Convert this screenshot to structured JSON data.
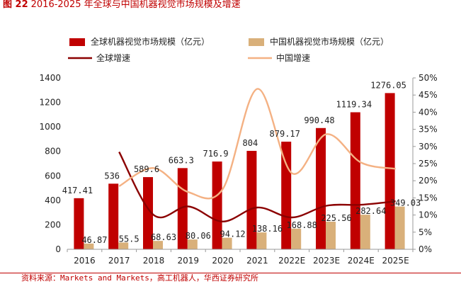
{
  "figure_title": {
    "label": "图 22",
    "text": "2016-2025 年全球与中国机器视觉市场规模及增速"
  },
  "source": "资料来源：Markets and Markets，高工机器人，华西证券研究所",
  "colors": {
    "global_bar": "#c00000",
    "china_bar": "#d9b07a",
    "global_line": "#8b0000",
    "china_line": "#f4b183",
    "accent": "#c00000"
  },
  "chart_data": {
    "type": "bar",
    "categories": [
      "2016",
      "2017",
      "2018",
      "2019",
      "2020",
      "2021",
      "2022E",
      "2023E",
      "2024E",
      "2025E"
    ],
    "series": [
      {
        "name": "全球机器视觉市场规模（亿元）",
        "kind": "bar",
        "axis": "left",
        "values": [
          417.41,
          536,
          589.6,
          663.3,
          716.9,
          804,
          879.17,
          990.48,
          1119.34,
          1276.05
        ],
        "labels": [
          "417.41",
          "536",
          "589.6",
          "663.3",
          "716.9",
          "804",
          "879.17",
          "990.48",
          "1119.34",
          "1276.05"
        ]
      },
      {
        "name": "中国机器视觉市场规模（亿元）",
        "kind": "bar",
        "axis": "left",
        "values": [
          46.87,
          55.5,
          68.63,
          80.06,
          94.12,
          138.16,
          168.88,
          225.56,
          282.64,
          349.03
        ],
        "labels": [
          "46.87",
          "55.5",
          "68.63",
          "80.06",
          "94.12",
          "138.16",
          "168.88",
          "225.56",
          "282.64",
          "349.03"
        ]
      },
      {
        "name": "全球增速",
        "kind": "line",
        "axis": "right",
        "values": [
          null,
          28.4,
          10.0,
          12.5,
          8.1,
          12.2,
          9.3,
          12.7,
          13.0,
          14.0
        ]
      },
      {
        "name": "中国增速",
        "kind": "line",
        "axis": "right",
        "values": [
          null,
          18.4,
          23.7,
          16.7,
          17.6,
          46.8,
          22.2,
          33.6,
          25.3,
          23.5
        ]
      }
    ],
    "y_left": {
      "min": 0,
      "max": 1400,
      "ticks": [
        0,
        200,
        400,
        600,
        800,
        1000,
        1200,
        1400
      ]
    },
    "y_right": {
      "min": 0,
      "max": 50,
      "unit": "%",
      "ticks": [
        0,
        5,
        10,
        15,
        20,
        25,
        30,
        35,
        40,
        45,
        50
      ]
    },
    "legend_position": "top",
    "grid": false
  }
}
